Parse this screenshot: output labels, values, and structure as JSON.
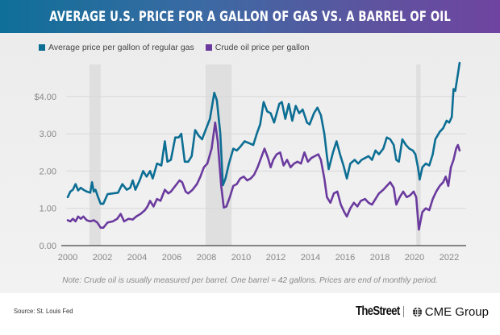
{
  "header": {
    "title": "AVERAGE U.S. PRICE FOR A GALLON OF GAS VS. A BARREL OF OIL"
  },
  "colors": {
    "gas": "#0d6e94",
    "oil": "#6a3a9e",
    "recession": "#dcdcdc",
    "grid": "#d8d8d8",
    "axis": "#444444",
    "tick": "#888888"
  },
  "note": "Note: Crude oil is usually measured per barrel. One barrel = 42 gallons. Prices are end of monthly period.",
  "source": "Source: St. Louis Fed",
  "logos": {
    "primary": "TheStreet",
    "secondary": "CME Group"
  },
  "chart_data": {
    "type": "line",
    "title": "AVERAGE U.S. PRICE FOR A GALLON OF GAS VS. A BARREL OF OIL",
    "xlabel": "",
    "ylabel": "",
    "xlim": [
      2000,
      2022.9
    ],
    "ylim": [
      0,
      4.9
    ],
    "grid": true,
    "legend_position": "top-left",
    "x_ticks": [
      2000,
      2002,
      2004,
      2006,
      2008,
      2010,
      2012,
      2014,
      2016,
      2018,
      2020,
      2022
    ],
    "y_ticks": [
      0,
      1,
      2,
      3,
      4
    ],
    "y_tick_labels": [
      "0.00",
      "1.00",
      "2.00",
      "3.00",
      "$4.00"
    ],
    "recessions": [
      [
        2001.25,
        2001.9
      ],
      [
        2007.95,
        2009.45
      ],
      [
        2020.1,
        2020.35
      ]
    ],
    "series": [
      {
        "name": "Average price per gallon of regular gas",
        "color": "#0d6e94",
        "points": [
          [
            2000.0,
            1.3
          ],
          [
            2000.15,
            1.45
          ],
          [
            2000.3,
            1.5
          ],
          [
            2000.45,
            1.65
          ],
          [
            2000.6,
            1.48
          ],
          [
            2000.75,
            1.55
          ],
          [
            2000.9,
            1.5
          ],
          [
            2001.1,
            1.45
          ],
          [
            2001.3,
            1.42
          ],
          [
            2001.4,
            1.7
          ],
          [
            2001.5,
            1.45
          ],
          [
            2001.6,
            1.5
          ],
          [
            2001.75,
            1.3
          ],
          [
            2001.9,
            1.12
          ],
          [
            2002.05,
            1.12
          ],
          [
            2002.3,
            1.38
          ],
          [
            2002.6,
            1.4
          ],
          [
            2002.9,
            1.42
          ],
          [
            2003.15,
            1.65
          ],
          [
            2003.4,
            1.5
          ],
          [
            2003.6,
            1.55
          ],
          [
            2003.75,
            1.75
          ],
          [
            2003.9,
            1.5
          ],
          [
            2004.15,
            1.75
          ],
          [
            2004.35,
            2.0
          ],
          [
            2004.55,
            1.85
          ],
          [
            2004.75,
            2.0
          ],
          [
            2004.9,
            1.8
          ],
          [
            2005.15,
            2.2
          ],
          [
            2005.4,
            2.15
          ],
          [
            2005.6,
            2.8
          ],
          [
            2005.75,
            2.25
          ],
          [
            2005.95,
            2.3
          ],
          [
            2006.2,
            2.9
          ],
          [
            2006.4,
            2.9
          ],
          [
            2006.55,
            3.0
          ],
          [
            2006.75,
            2.25
          ],
          [
            2006.95,
            2.25
          ],
          [
            2007.15,
            2.4
          ],
          [
            2007.35,
            3.1
          ],
          [
            2007.55,
            2.95
          ],
          [
            2007.75,
            2.85
          ],
          [
            2007.95,
            3.1
          ],
          [
            2008.2,
            3.4
          ],
          [
            2008.45,
            4.1
          ],
          [
            2008.6,
            3.9
          ],
          [
            2008.8,
            3.0
          ],
          [
            2008.95,
            1.62
          ],
          [
            2009.1,
            1.8
          ],
          [
            2009.3,
            2.2
          ],
          [
            2009.55,
            2.6
          ],
          [
            2009.75,
            2.55
          ],
          [
            2009.95,
            2.65
          ],
          [
            2010.2,
            2.8
          ],
          [
            2010.45,
            2.75
          ],
          [
            2010.7,
            2.7
          ],
          [
            2010.9,
            3.0
          ],
          [
            2011.1,
            3.25
          ],
          [
            2011.3,
            3.85
          ],
          [
            2011.5,
            3.6
          ],
          [
            2011.7,
            3.55
          ],
          [
            2011.9,
            3.3
          ],
          [
            2012.2,
            3.8
          ],
          [
            2012.35,
            3.85
          ],
          [
            2012.55,
            3.4
          ],
          [
            2012.75,
            3.8
          ],
          [
            2012.95,
            3.35
          ],
          [
            2013.15,
            3.75
          ],
          [
            2013.35,
            3.55
          ],
          [
            2013.55,
            3.65
          ],
          [
            2013.8,
            3.3
          ],
          [
            2013.95,
            3.25
          ],
          [
            2014.2,
            3.55
          ],
          [
            2014.4,
            3.7
          ],
          [
            2014.6,
            3.5
          ],
          [
            2014.8,
            3.0
          ],
          [
            2014.95,
            2.4
          ],
          [
            2015.05,
            2.05
          ],
          [
            2015.3,
            2.5
          ],
          [
            2015.5,
            2.8
          ],
          [
            2015.7,
            2.45
          ],
          [
            2015.9,
            2.15
          ],
          [
            2016.1,
            1.8
          ],
          [
            2016.3,
            2.2
          ],
          [
            2016.55,
            2.3
          ],
          [
            2016.75,
            2.2
          ],
          [
            2016.95,
            2.3
          ],
          [
            2017.15,
            2.35
          ],
          [
            2017.35,
            2.4
          ],
          [
            2017.55,
            2.3
          ],
          [
            2017.75,
            2.55
          ],
          [
            2017.95,
            2.45
          ],
          [
            2018.2,
            2.6
          ],
          [
            2018.4,
            2.9
          ],
          [
            2018.6,
            2.85
          ],
          [
            2018.8,
            2.7
          ],
          [
            2018.95,
            2.3
          ],
          [
            2019.1,
            2.25
          ],
          [
            2019.3,
            2.85
          ],
          [
            2019.5,
            2.7
          ],
          [
            2019.7,
            2.6
          ],
          [
            2019.9,
            2.55
          ],
          [
            2020.05,
            2.45
          ],
          [
            2020.2,
            2.1
          ],
          [
            2020.3,
            1.77
          ],
          [
            2020.45,
            2.1
          ],
          [
            2020.65,
            2.2
          ],
          [
            2020.85,
            2.15
          ],
          [
            2021.05,
            2.45
          ],
          [
            2021.2,
            2.85
          ],
          [
            2021.45,
            3.05
          ],
          [
            2021.65,
            3.15
          ],
          [
            2021.85,
            3.35
          ],
          [
            2022.0,
            3.3
          ],
          [
            2022.15,
            3.45
          ],
          [
            2022.25,
            4.2
          ],
          [
            2022.35,
            4.15
          ],
          [
            2022.5,
            4.6
          ],
          [
            2022.6,
            4.9
          ]
        ]
      },
      {
        "name": "Crude oil price per gallon",
        "color": "#6a3a9e",
        "points": [
          [
            2000.0,
            0.68
          ],
          [
            2000.15,
            0.65
          ],
          [
            2000.3,
            0.72
          ],
          [
            2000.45,
            0.65
          ],
          [
            2000.6,
            0.78
          ],
          [
            2000.75,
            0.72
          ],
          [
            2000.9,
            0.78
          ],
          [
            2001.1,
            0.68
          ],
          [
            2001.3,
            0.65
          ],
          [
            2001.5,
            0.68
          ],
          [
            2001.7,
            0.62
          ],
          [
            2001.9,
            0.48
          ],
          [
            2002.05,
            0.48
          ],
          [
            2002.3,
            0.62
          ],
          [
            2002.6,
            0.65
          ],
          [
            2002.85,
            0.72
          ],
          [
            2003.05,
            0.85
          ],
          [
            2003.25,
            0.65
          ],
          [
            2003.5,
            0.72
          ],
          [
            2003.75,
            0.7
          ],
          [
            2003.95,
            0.78
          ],
          [
            2004.2,
            0.85
          ],
          [
            2004.45,
            0.95
          ],
          [
            2004.6,
            1.05
          ],
          [
            2004.75,
            1.2
          ],
          [
            2004.95,
            1.05
          ],
          [
            2005.15,
            1.25
          ],
          [
            2005.35,
            1.2
          ],
          [
            2005.6,
            1.5
          ],
          [
            2005.8,
            1.4
          ],
          [
            2005.95,
            1.45
          ],
          [
            2006.2,
            1.6
          ],
          [
            2006.45,
            1.75
          ],
          [
            2006.6,
            1.7
          ],
          [
            2006.8,
            1.45
          ],
          [
            2006.95,
            1.4
          ],
          [
            2007.2,
            1.5
          ],
          [
            2007.45,
            1.65
          ],
          [
            2007.65,
            1.85
          ],
          [
            2007.85,
            2.1
          ],
          [
            2008.05,
            2.2
          ],
          [
            2008.3,
            2.6
          ],
          [
            2008.5,
            3.3
          ],
          [
            2008.65,
            2.8
          ],
          [
            2008.85,
            1.6
          ],
          [
            2009.0,
            1.02
          ],
          [
            2009.15,
            1.05
          ],
          [
            2009.35,
            1.3
          ],
          [
            2009.55,
            1.6
          ],
          [
            2009.75,
            1.65
          ],
          [
            2009.95,
            1.8
          ],
          [
            2010.15,
            1.85
          ],
          [
            2010.35,
            1.75
          ],
          [
            2010.55,
            1.8
          ],
          [
            2010.75,
            1.9
          ],
          [
            2010.95,
            2.1
          ],
          [
            2011.15,
            2.35
          ],
          [
            2011.35,
            2.6
          ],
          [
            2011.55,
            2.35
          ],
          [
            2011.7,
            2.1
          ],
          [
            2011.85,
            2.3
          ],
          [
            2012.05,
            2.45
          ],
          [
            2012.25,
            2.5
          ],
          [
            2012.45,
            2.15
          ],
          [
            2012.65,
            2.3
          ],
          [
            2012.85,
            2.1
          ],
          [
            2013.05,
            2.2
          ],
          [
            2013.25,
            2.25
          ],
          [
            2013.45,
            2.2
          ],
          [
            2013.65,
            2.5
          ],
          [
            2013.85,
            2.25
          ],
          [
            2014.05,
            2.35
          ],
          [
            2014.25,
            2.4
          ],
          [
            2014.45,
            2.45
          ],
          [
            2014.6,
            2.3
          ],
          [
            2014.8,
            1.8
          ],
          [
            2014.95,
            1.3
          ],
          [
            2015.15,
            1.15
          ],
          [
            2015.35,
            1.4
          ],
          [
            2015.55,
            1.45
          ],
          [
            2015.75,
            1.1
          ],
          [
            2015.95,
            0.9
          ],
          [
            2016.1,
            0.78
          ],
          [
            2016.3,
            1.0
          ],
          [
            2016.5,
            1.15
          ],
          [
            2016.7,
            1.05
          ],
          [
            2016.9,
            1.2
          ],
          [
            2017.15,
            1.25
          ],
          [
            2017.35,
            1.15
          ],
          [
            2017.55,
            1.1
          ],
          [
            2017.75,
            1.25
          ],
          [
            2017.95,
            1.4
          ],
          [
            2018.2,
            1.5
          ],
          [
            2018.4,
            1.6
          ],
          [
            2018.6,
            1.7
          ],
          [
            2018.8,
            1.55
          ],
          [
            2018.95,
            1.1
          ],
          [
            2019.15,
            1.3
          ],
          [
            2019.35,
            1.45
          ],
          [
            2019.55,
            1.3
          ],
          [
            2019.75,
            1.35
          ],
          [
            2019.95,
            1.45
          ],
          [
            2020.1,
            1.3
          ],
          [
            2020.25,
            0.43
          ],
          [
            2020.45,
            0.9
          ],
          [
            2020.65,
            1.0
          ],
          [
            2020.85,
            0.95
          ],
          [
            2021.05,
            1.25
          ],
          [
            2021.25,
            1.45
          ],
          [
            2021.45,
            1.6
          ],
          [
            2021.65,
            1.7
          ],
          [
            2021.8,
            1.85
          ],
          [
            2021.95,
            1.6
          ],
          [
            2022.1,
            2.1
          ],
          [
            2022.25,
            2.3
          ],
          [
            2022.4,
            2.6
          ],
          [
            2022.5,
            2.7
          ],
          [
            2022.6,
            2.55
          ]
        ]
      }
    ]
  }
}
